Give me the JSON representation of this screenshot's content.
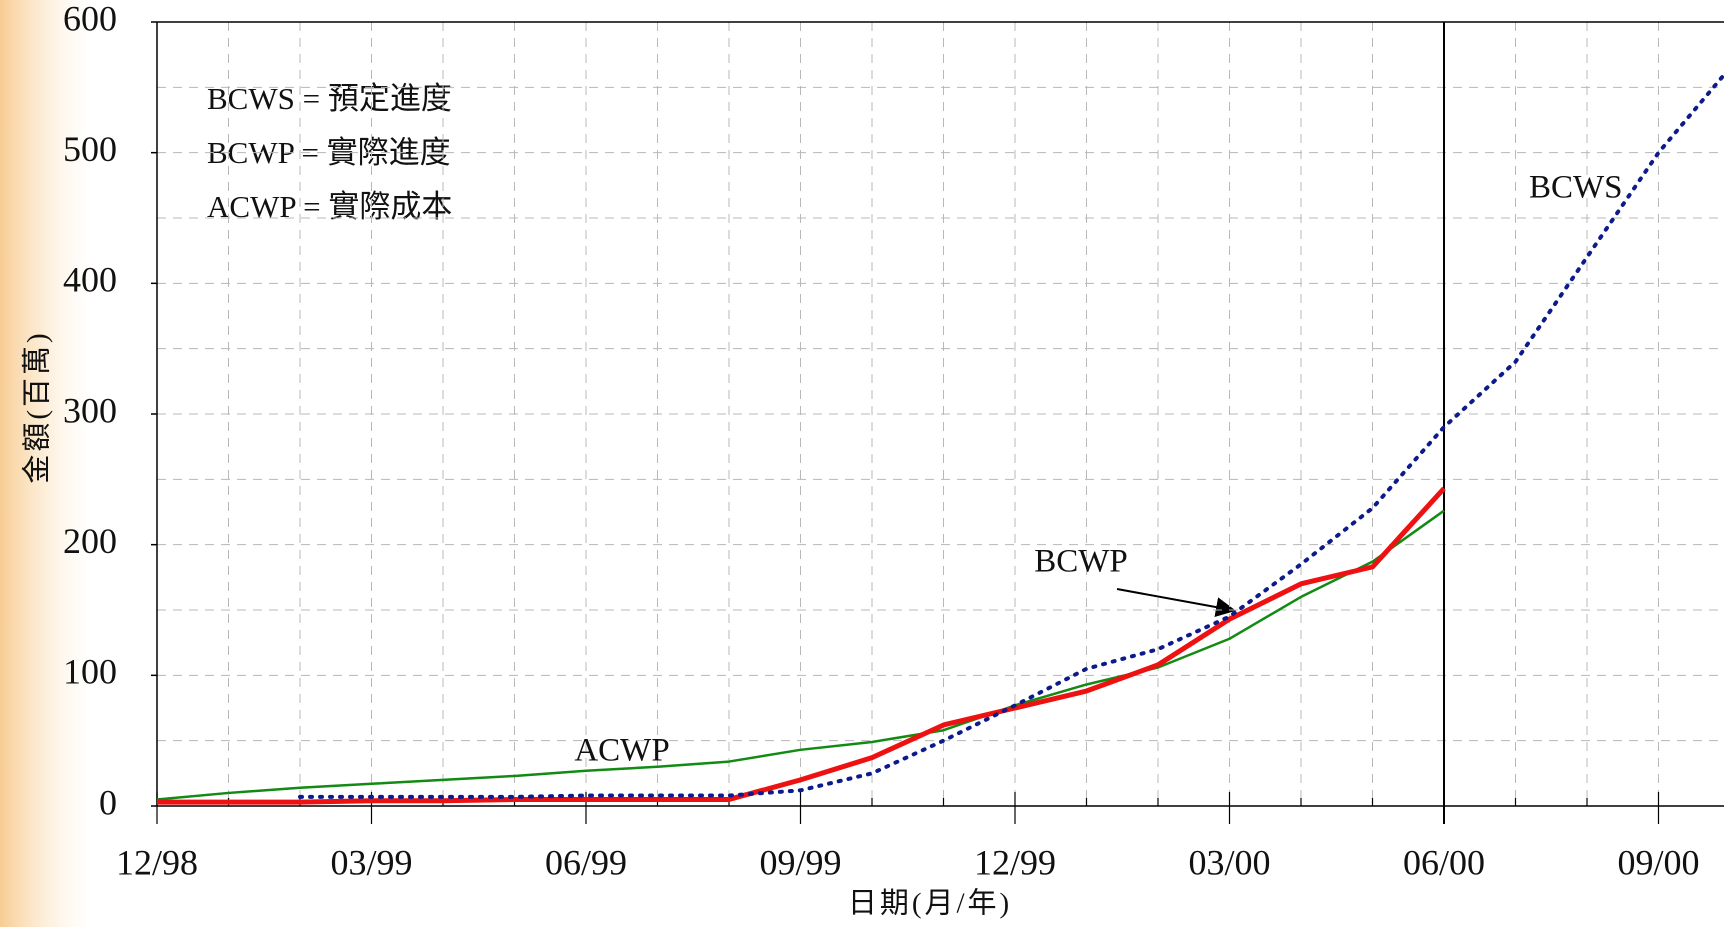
{
  "chart_data": {
    "type": "line",
    "x_label": "日期(月/年)",
    "y_label": "金額(百萬)",
    "annotations": [
      "BCWS = 預定進度",
      "BCWP = 實際進度",
      "ACWP = 實際成本"
    ],
    "categories": [
      "12/98",
      null,
      null,
      "03/99",
      null,
      null,
      "06/99",
      null,
      null,
      "09/99",
      null,
      null,
      "12/99",
      null,
      null,
      "03/00",
      null,
      null,
      "06/00",
      null,
      null,
      "09/00",
      null
    ],
    "status_date": "06/00",
    "series": [
      {
        "name": "BCWS",
        "color": "#0d1a8c",
        "dash": "dotted",
        "values": [
          null,
          null,
          7,
          7,
          7,
          7,
          8,
          8,
          8,
          12,
          25,
          50,
          77,
          105,
          120,
          145,
          185,
          228,
          290,
          340,
          420,
          500,
          565
        ]
      },
      {
        "name": "BCWP",
        "color": "#ee1111",
        "dash": "solid",
        "values": [
          3,
          3,
          3,
          4,
          4,
          5,
          5,
          5,
          5,
          20,
          37,
          62,
          75,
          88,
          108,
          143,
          170,
          183,
          243,
          null,
          null,
          null,
          null
        ]
      },
      {
        "name": "ACWP",
        "color": "#138a13",
        "dash": "solid",
        "values": [
          5,
          10,
          14,
          17,
          20,
          23,
          27,
          30,
          34,
          43,
          49,
          58,
          77,
          93,
          106,
          128,
          160,
          187,
          226,
          null,
          null,
          null,
          null
        ]
      }
    ],
    "ylim": [
      0,
      600
    ],
    "yticks": [
      0,
      100,
      200,
      300,
      400,
      500,
      600
    ],
    "grid": true
  }
}
